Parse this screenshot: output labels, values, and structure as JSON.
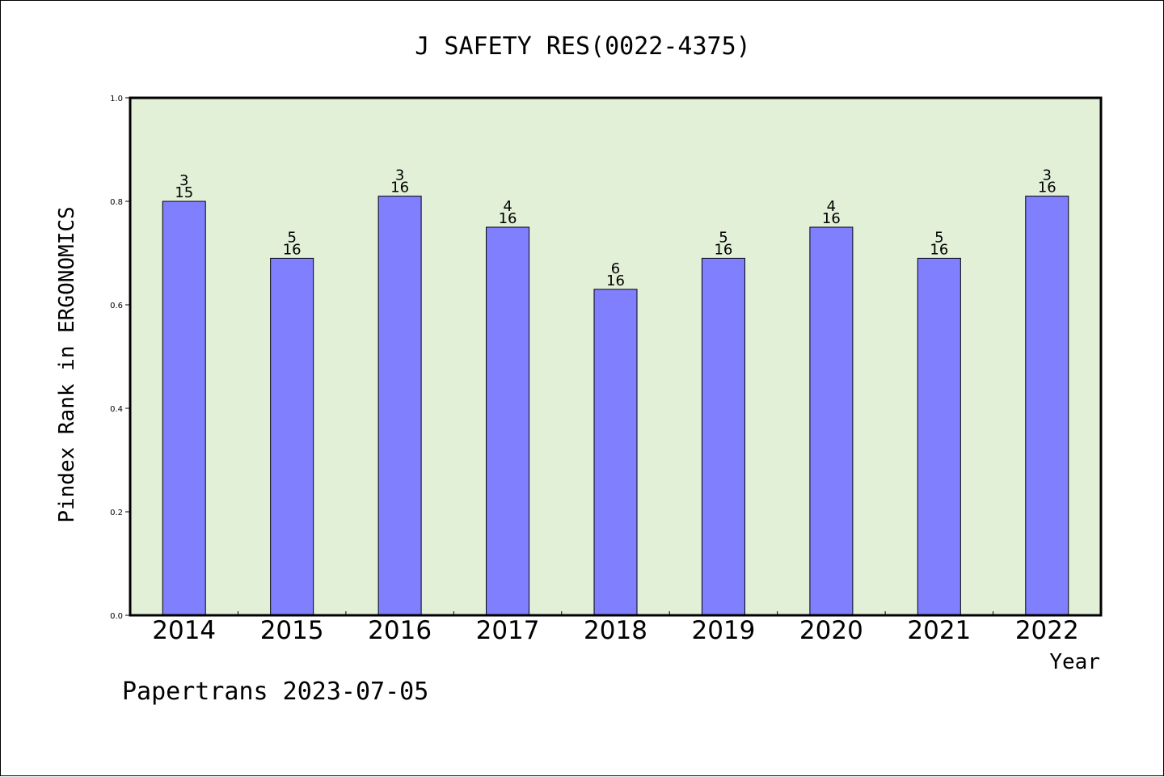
{
  "chart_data": {
    "type": "bar",
    "title": "J SAFETY RES(0022-4375)",
    "xlabel": "Year",
    "ylabel": "Pindex Rank in ERGONOMICS",
    "footer": "Papertrans 2023-07-05",
    "categories": [
      "2014",
      "2015",
      "2016",
      "2017",
      "2018",
      "2019",
      "2020",
      "2021",
      "2022"
    ],
    "values": [
      0.8,
      0.69,
      0.81,
      0.75,
      0.63,
      0.69,
      0.75,
      0.69,
      0.81
    ],
    "rank_labels": [
      {
        "rank": "3",
        "total": "15"
      },
      {
        "rank": "5",
        "total": "16"
      },
      {
        "rank": "3",
        "total": "16"
      },
      {
        "rank": "4",
        "total": "16"
      },
      {
        "rank": "6",
        "total": "16"
      },
      {
        "rank": "5",
        "total": "16"
      },
      {
        "rank": "4",
        "total": "16"
      },
      {
        "rank": "5",
        "total": "16"
      },
      {
        "rank": "3",
        "total": "16"
      }
    ],
    "ylim": [
      0,
      1.0
    ],
    "yticks": [
      "0.0",
      "0.2",
      "0.4",
      "0.6",
      "0.8",
      "1.0"
    ],
    "grid": false,
    "legend": "none",
    "colors": {
      "plot_background": "#e2f0d7",
      "bar_fill": "#8080ff",
      "bar_stroke": "#000000"
    }
  }
}
